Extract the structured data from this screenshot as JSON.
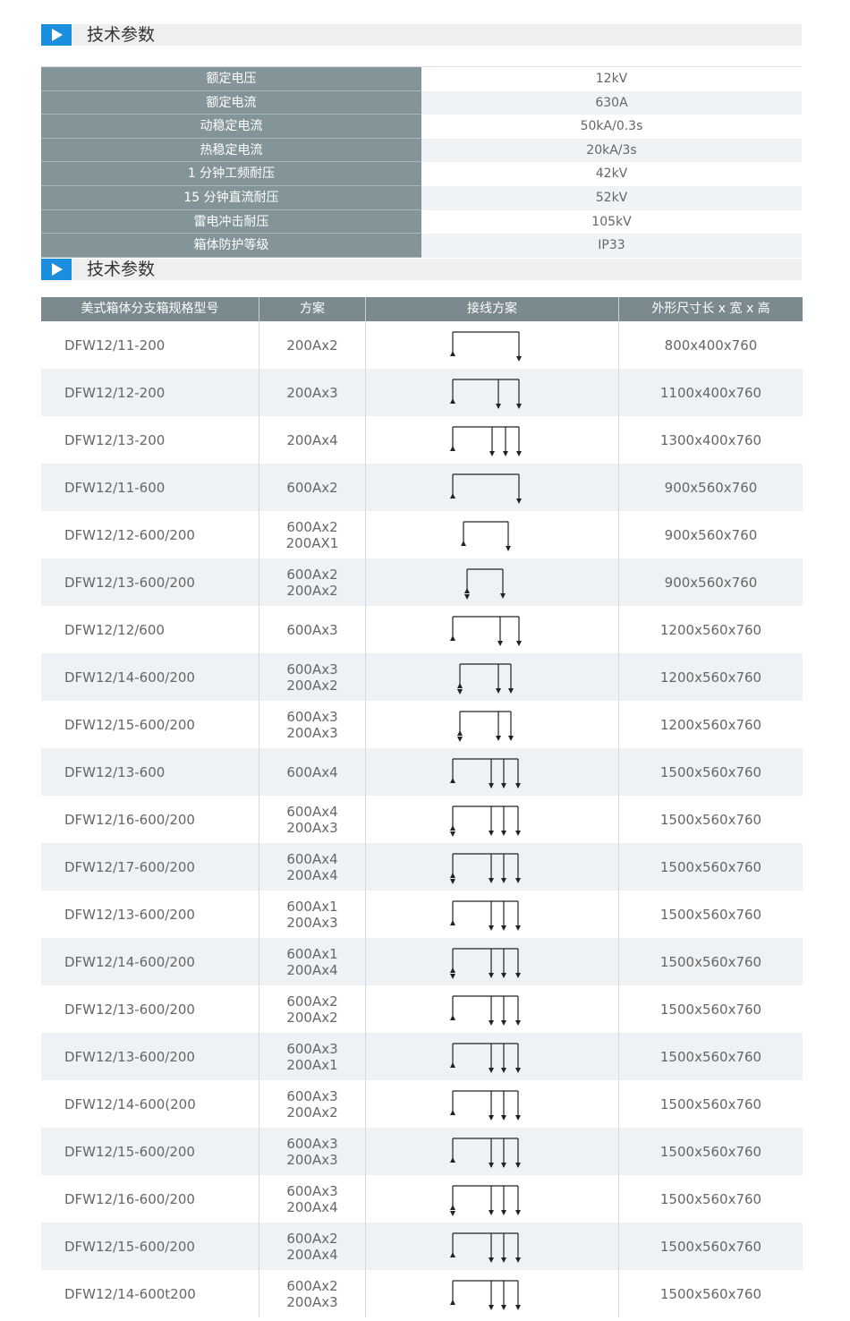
{
  "sections": [
    {
      "title": "技术参数"
    },
    {
      "title": "技术参数"
    }
  ],
  "params": {
    "rows": [
      [
        "额定电压",
        "12kV"
      ],
      [
        "额定电流",
        "630A"
      ],
      [
        "动稳定电流",
        "50kA/0.3s"
      ],
      [
        "热稳定电流",
        "20kA/3s"
      ],
      [
        "1 分钟工频耐压",
        "42kV"
      ],
      [
        "15 分钟直流耐压",
        "52kV"
      ],
      [
        "雷电冲击耐压",
        "105kV"
      ],
      [
        "箱体防护等级",
        "IP33"
      ]
    ]
  },
  "spec_table": {
    "header": [
      "美式箱体分支箱规格型号",
      "方案",
      "接线方案",
      "外形尺寸长 x 宽 x 高"
    ],
    "rows": [
      {
        "model": "DFW12/11-200",
        "scheme": [
          "200Ax2"
        ],
        "size": "800x400x760"
      },
      {
        "model": "DFW12/12-200",
        "scheme": [
          "200Ax3"
        ],
        "size": "1100x400x760"
      },
      {
        "model": "DFW12/13-200",
        "scheme": [
          "200Ax4"
        ],
        "size": "1300x400x760"
      },
      {
        "model": "DFW12/11-600",
        "scheme": [
          "600Ax2"
        ],
        "size": "900x560x760"
      },
      {
        "model": "DFW12/12-600/200",
        "scheme": [
          "600Ax2",
          "200AX1"
        ],
        "size": "900x560x760"
      },
      {
        "model": "DFW12/13-600/200",
        "scheme": [
          "600Ax2",
          "200Ax2"
        ],
        "size": "900x560x760"
      },
      {
        "model": "DFW12/12/600",
        "scheme": [
          "600Ax3"
        ],
        "size": "1200x560x760"
      },
      {
        "model": "DFW12/14-600/200",
        "scheme": [
          "600Ax3",
          "200Ax2"
        ],
        "size": "1200x560x760"
      },
      {
        "model": "DFW12/15-600/200",
        "scheme": [
          "600Ax3",
          "200Ax3"
        ],
        "size": "1200x560x760"
      },
      {
        "model": "DFW12/13-600",
        "scheme": [
          "600Ax4"
        ],
        "size": "1500x560x760"
      },
      {
        "model": "DFW12/16-600/200",
        "scheme": [
          "600Ax4",
          "200Ax3"
        ],
        "size": "1500x560x760"
      },
      {
        "model": "DFW12/17-600/200",
        "scheme": [
          "600Ax4",
          "200Ax4"
        ],
        "size": "1500x560x760"
      },
      {
        "model": "DFW12/13-600/200",
        "scheme": [
          "600Ax1",
          "200Ax3"
        ],
        "size": "1500x560x760"
      },
      {
        "model": "DFW12/14-600/200",
        "scheme": [
          "600Ax1",
          "200Ax4"
        ],
        "size": "1500x560x760"
      },
      {
        "model": "DFW12/13-600/200",
        "scheme": [
          "600Ax2",
          "200Ax2"
        ],
        "size": "1500x560x760"
      },
      {
        "model": "DFW12/13-600/200",
        "scheme": [
          "600Ax3",
          "200Ax1"
        ],
        "size": "1500x560x760"
      },
      {
        "model": "DFW12/14-600(200",
        "scheme": [
          "600Ax3",
          "200Ax2"
        ],
        "size": "1500x560x760"
      },
      {
        "model": "DFW12/15-600/200",
        "scheme": [
          "600Ax3",
          "200Ax3"
        ],
        "size": "1500x560x760"
      },
      {
        "model": "DFW12/16-600/200",
        "scheme": [
          "600Ax3",
          "200Ax4"
        ],
        "size": "1500x560x760"
      },
      {
        "model": "DFW12/15-600/200",
        "scheme": [
          "600Ax2",
          "200Ax4"
        ],
        "size": "1500x560x760"
      },
      {
        "model": "DFW12/14-600t200",
        "scheme": [
          "600Ax2",
          "200Ax3"
        ],
        "size": "1500x560x760"
      }
    ]
  }
}
